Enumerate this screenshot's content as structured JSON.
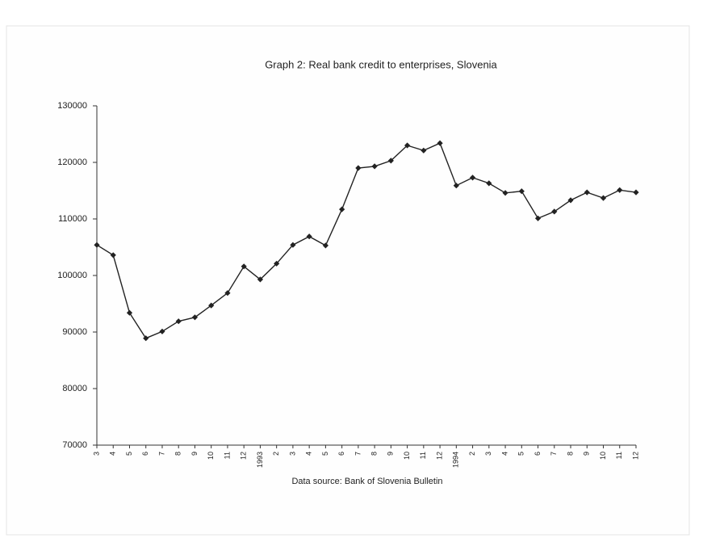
{
  "chart_data": {
    "type": "line",
    "title": "Graph 2: Real bank credit to enterprises, Slovenia",
    "note": "Data source: Bank of Slovenia Bulletin",
    "categories": [
      "3",
      "4",
      "5",
      "6",
      "7",
      "8",
      "9",
      "10",
      "11",
      "12",
      "1993",
      "2",
      "3",
      "4",
      "5",
      "6",
      "7",
      "8",
      "9",
      "10",
      "11",
      "12",
      "1994",
      "2",
      "3",
      "4",
      "5",
      "6",
      "7",
      "8",
      "9",
      "10",
      "11",
      "12"
    ],
    "series": [
      {
        "name": "Real bank credit",
        "color": "#222222",
        "values": [
          105400,
          103600,
          93400,
          88900,
          90100,
          91900,
          92600,
          94700,
          96900,
          101600,
          99300,
          102100,
          105400,
          106900,
          105300,
          111700,
          119000,
          119300,
          120300,
          123000,
          122100,
          123400,
          115900,
          117300,
          116300,
          114600,
          114900,
          110100,
          111300,
          113300,
          114700,
          113700,
          115100,
          114700
        ]
      }
    ],
    "ylim": [
      70000,
      130000
    ],
    "yticks": [
      70000,
      80000,
      90000,
      100000,
      110000,
      120000,
      130000
    ]
  }
}
